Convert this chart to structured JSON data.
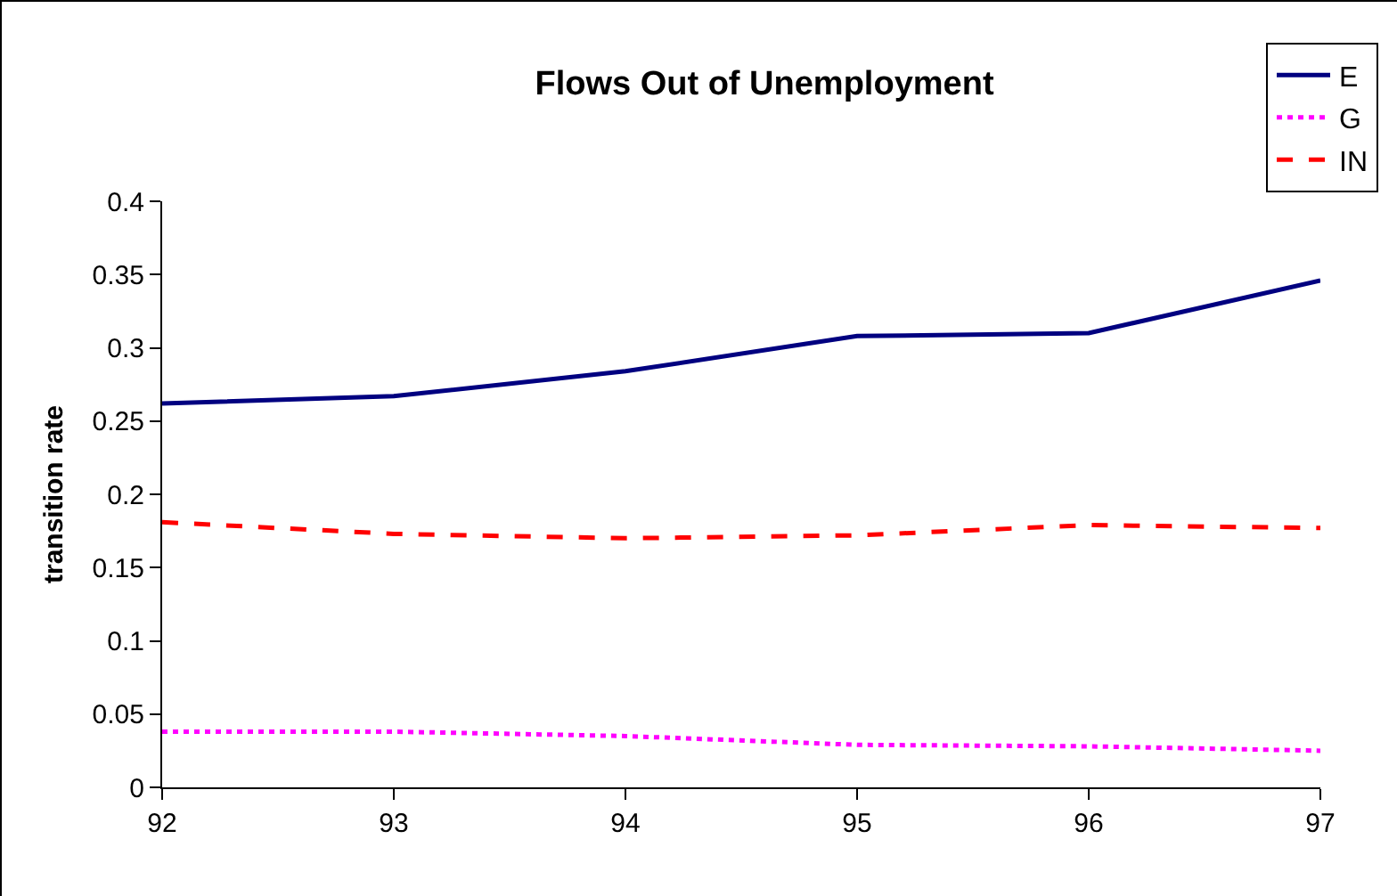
{
  "chart_data": {
    "type": "line",
    "title": "Flows Out of Unemployment",
    "ylabel": "transition rate",
    "x": [
      92,
      93,
      94,
      95,
      96,
      97
    ],
    "xlim": [
      92,
      97
    ],
    "xticks": [
      92,
      93,
      94,
      95,
      96,
      97
    ],
    "ylim": [
      0,
      0.4
    ],
    "yticks": [
      0,
      0.05,
      0.1,
      0.15,
      0.2,
      0.25,
      0.3,
      0.35,
      0.4
    ],
    "grid": false,
    "legend": "top right",
    "marker": "none",
    "series": [
      {
        "name": "E",
        "color": "#000080",
        "line_style": "solid",
        "values": [
          0.262,
          0.267,
          0.284,
          0.308,
          0.31,
          0.346
        ]
      },
      {
        "name": "G",
        "color": "#ff00ff",
        "line_style": "dotted",
        "values": [
          0.038,
          0.038,
          0.035,
          0.029,
          0.028,
          0.025
        ]
      },
      {
        "name": "IN",
        "color": "#ff0000",
        "line_style": "dashed",
        "values": [
          0.181,
          0.173,
          0.17,
          0.172,
          0.179,
          0.177
        ]
      }
    ]
  }
}
